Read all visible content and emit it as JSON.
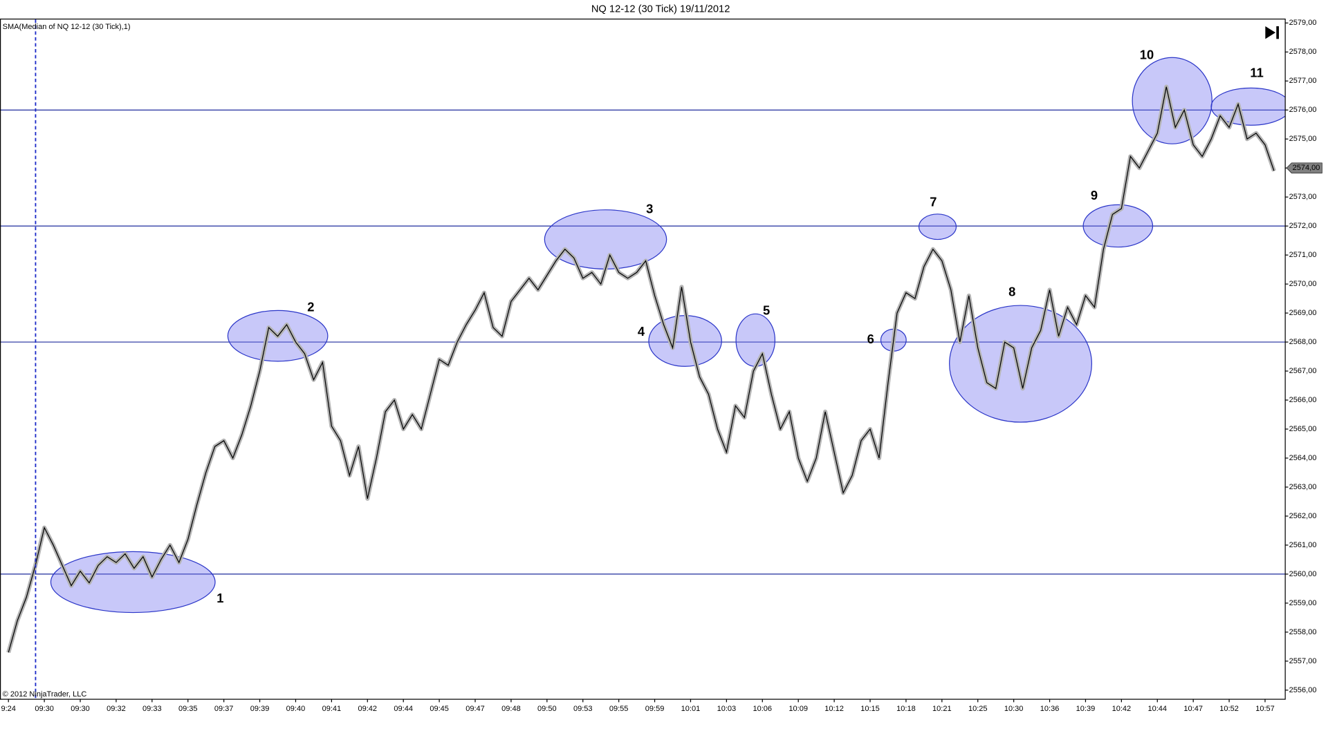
{
  "chart_data": {
    "type": "line",
    "title": "NQ 12-12 (30 Tick)  19/11/2012",
    "indicator_label": "SMA(Median of NQ 12-12 (30 Tick),1)",
    "copyright": "© 2012 NinjaTrader, LLC",
    "series": [
      {
        "name": "NQ 12-12",
        "color": "#000000",
        "values": [
          2557.3,
          2558.4,
          2559.2,
          2560.3,
          2561.6,
          2561.0,
          2560.3,
          2559.6,
          2560.1,
          2559.7,
          2560.3,
          2560.6,
          2560.4,
          2560.7,
          2560.2,
          2560.6,
          2559.9,
          2560.5,
          2561.0,
          2560.4,
          2561.2,
          2562.4,
          2563.5,
          2564.4,
          2564.6,
          2564.0,
          2564.8,
          2565.8,
          2567.0,
          2568.5,
          2568.2,
          2568.6,
          2568.0,
          2567.6,
          2566.7,
          2567.3,
          2565.1,
          2564.6,
          2563.4,
          2564.4,
          2562.6,
          2564.0,
          2565.6,
          2566.0,
          2565.0,
          2565.5,
          2565.0,
          2566.2,
          2567.4,
          2567.2,
          2568.0,
          2568.6,
          2569.1,
          2569.7,
          2568.5,
          2568.2,
          2569.4,
          2569.8,
          2570.2,
          2569.8,
          2570.3,
          2570.8,
          2571.2,
          2570.9,
          2570.2,
          2570.4,
          2570.0,
          2571.0,
          2570.4,
          2570.2,
          2570.4,
          2570.8,
          2569.6,
          2568.6,
          2567.8,
          2569.9,
          2568.0,
          2566.8,
          2566.2,
          2565.0,
          2564.2,
          2565.8,
          2565.4,
          2567.0,
          2567.6,
          2566.2,
          2565.0,
          2565.6,
          2564.0,
          2563.2,
          2564.0,
          2565.6,
          2564.2,
          2562.8,
          2563.4,
          2564.6,
          2565.0,
          2564.0,
          2566.6,
          2569.0,
          2569.7,
          2569.5,
          2570.6,
          2571.2,
          2570.8,
          2569.8,
          2568.0,
          2569.6,
          2567.8,
          2566.6,
          2566.4,
          2568.0,
          2567.8,
          2566.4,
          2567.8,
          2568.4,
          2569.8,
          2568.2,
          2569.2,
          2568.6,
          2569.6,
          2569.2,
          2571.2,
          2572.4,
          2572.6,
          2574.4,
          2574.0,
          2574.6,
          2575.2,
          2576.8,
          2575.4,
          2576.0,
          2574.8,
          2574.4,
          2575.0,
          2575.8,
          2575.4,
          2576.2,
          2575.0,
          2575.2,
          2574.8,
          2573.9
        ]
      }
    ],
    "xlim": [
      -0.94,
      142.2
    ],
    "xticks": [
      {
        "value": 0,
        "label": "9:24"
      },
      {
        "value": 4,
        "label": "09:30"
      },
      {
        "value": 8,
        "label": "09:30"
      },
      {
        "value": 12,
        "label": "09:32"
      },
      {
        "value": 16,
        "label": "09:33"
      },
      {
        "value": 20,
        "label": "09:35"
      },
      {
        "value": 24,
        "label": "09:37"
      },
      {
        "value": 28,
        "label": "09:39"
      },
      {
        "value": 32,
        "label": "09:40"
      },
      {
        "value": 36,
        "label": "09:41"
      },
      {
        "value": 40,
        "label": "09:42"
      },
      {
        "value": 44,
        "label": "09:44"
      },
      {
        "value": 48,
        "label": "09:45"
      },
      {
        "value": 52,
        "label": "09:47"
      },
      {
        "value": 56,
        "label": "09:48"
      },
      {
        "value": 60,
        "label": "09:50"
      },
      {
        "value": 64,
        "label": "09:53"
      },
      {
        "value": 68,
        "label": "09:55"
      },
      {
        "value": 72,
        "label": "09:59"
      },
      {
        "value": 76,
        "label": "10:01"
      },
      {
        "value": 80,
        "label": "10:03"
      },
      {
        "value": 84,
        "label": "10:06"
      },
      {
        "value": 88,
        "label": "10:09"
      },
      {
        "value": 92,
        "label": "10:12"
      },
      {
        "value": 96,
        "label": "10:15"
      },
      {
        "value": 100,
        "label": "10:18"
      },
      {
        "value": 104,
        "label": "10:21"
      },
      {
        "value": 108,
        "label": "10:25"
      },
      {
        "value": 112,
        "label": "10:30"
      },
      {
        "value": 116,
        "label": "10:36"
      },
      {
        "value": 120,
        "label": "10:39"
      },
      {
        "value": 124,
        "label": "10:42"
      },
      {
        "value": 128,
        "label": "10:44"
      },
      {
        "value": 132,
        "label": "10:47"
      },
      {
        "value": 136,
        "label": "10:52"
      },
      {
        "value": 140,
        "label": "10:57"
      }
    ],
    "ylim": [
      2555.7,
      2579.15
    ],
    "yticks": [
      {
        "value": 2556,
        "label": "2556,00"
      },
      {
        "value": 2557,
        "label": "2557,00"
      },
      {
        "value": 2558,
        "label": "2558,00"
      },
      {
        "value": 2559,
        "label": "2559,00"
      },
      {
        "value": 2560,
        "label": "2560,00"
      },
      {
        "value": 2561,
        "label": "2561,00"
      },
      {
        "value": 2562,
        "label": "2562,00"
      },
      {
        "value": 2563,
        "label": "2563,00"
      },
      {
        "value": 2564,
        "label": "2564,00"
      },
      {
        "value": 2565,
        "label": "2565,00"
      },
      {
        "value": 2566,
        "label": "2566,00"
      },
      {
        "value": 2567,
        "label": "2567,00"
      },
      {
        "value": 2568,
        "label": "2568,00"
      },
      {
        "value": 2569,
        "label": "2569,00"
      },
      {
        "value": 2570,
        "label": "2570,00"
      },
      {
        "value": 2571,
        "label": "2571,00"
      },
      {
        "value": 2572,
        "label": "2572,00"
      },
      {
        "value": 2573,
        "label": "2573,00"
      },
      {
        "value": 2574,
        "label": "2574,00"
      },
      {
        "value": 2575,
        "label": "2575,00"
      },
      {
        "value": 2576,
        "label": "2576,00"
      },
      {
        "value": 2577,
        "label": "2577,00"
      },
      {
        "value": 2578,
        "label": "2578,00"
      },
      {
        "value": 2579,
        "label": "2579,00"
      }
    ],
    "last_price": {
      "value": 2574,
      "label": "2574,00"
    },
    "levels": [
      2560,
      2568,
      2572,
      2576
    ],
    "level_color": "#1c2a9c",
    "annotations": [
      "1",
      "2",
      "3",
      "4",
      "5",
      "6",
      "7",
      "8",
      "9",
      "10",
      "11"
    ]
  }
}
